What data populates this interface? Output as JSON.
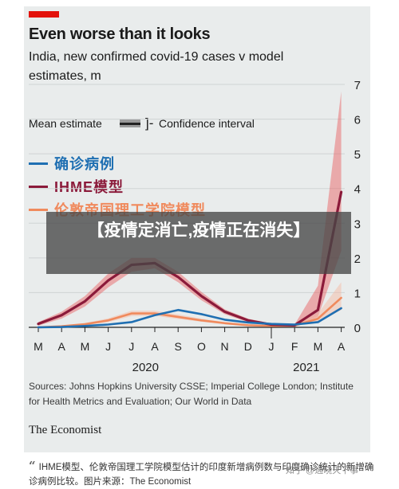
{
  "title": "Even worse than it looks",
  "subtitle": "India, new confirmed covid-19 cases v model estimates, m",
  "legend_keys": {
    "mean_estimate": "Mean estimate",
    "confidence_interval": "Confidence interval"
  },
  "banner": "【疫情定消亡,疫情正在消失】",
  "source": "Sources: Johns Hopkins University CSSE; Imperial College London; Institute for Health Metrics and Evaluation; Our World in Data",
  "brand": "The Economist",
  "caption": "IHME模型、伦敦帝国理工学院模型估计的印度新增病例数与印度确诊统计的新增确诊病例比较。图片来源：The Economist",
  "watermark": "知乎 @通晓天下事",
  "colors": {
    "confirmed": "#1f6fb2",
    "ihme": "#8b1a3a",
    "ihme_band": "#e8585a",
    "imperial": "#f08a5d",
    "imperial_band": "#f6b7a0",
    "accent": "#e3120b"
  },
  "chart_data": {
    "type": "line",
    "x": [
      "M",
      "A",
      "M",
      "J",
      "J",
      "A",
      "S",
      "O",
      "N",
      "D",
      "J",
      "F",
      "M",
      "A"
    ],
    "year_labels": [
      "2020",
      "2021"
    ],
    "ylim": [
      0,
      7
    ],
    "yticks": [
      0,
      1,
      2,
      3,
      4,
      5,
      6,
      7
    ],
    "series": [
      {
        "name": "确诊病例",
        "color": "#1f6fb2",
        "values": [
          0,
          0.01,
          0.04,
          0.08,
          0.15,
          0.35,
          0.5,
          0.38,
          0.22,
          0.14,
          0.1,
          0.08,
          0.15,
          0.55
        ]
      },
      {
        "name": "IHME模型",
        "color": "#8b1a3a",
        "values": [
          0.1,
          0.35,
          0.75,
          1.35,
          1.8,
          1.85,
          1.45,
          0.9,
          0.45,
          0.2,
          0.08,
          0.06,
          0.5,
          3.9
        ],
        "lower": [
          0.05,
          0.25,
          0.6,
          1.15,
          1.6,
          1.7,
          1.3,
          0.78,
          0.38,
          0.15,
          0.05,
          0.04,
          0.3,
          2.2
        ],
        "upper": [
          0.15,
          0.45,
          0.9,
          1.55,
          2.0,
          2.0,
          1.6,
          1.02,
          0.52,
          0.25,
          0.11,
          0.08,
          1.2,
          6.8
        ]
      },
      {
        "name": "伦敦帝国理工学院模型",
        "color": "#f08a5d",
        "values": [
          0,
          0.03,
          0.09,
          0.2,
          0.4,
          0.4,
          0.3,
          0.2,
          0.12,
          0.06,
          0.04,
          0.05,
          0.25,
          0.85
        ],
        "lower": [
          0,
          0.02,
          0.06,
          0.15,
          0.32,
          0.33,
          0.24,
          0.16,
          0.09,
          0.04,
          0.03,
          0.04,
          0.15,
          0.5
        ],
        "upper": [
          0,
          0.04,
          0.12,
          0.26,
          0.48,
          0.48,
          0.37,
          0.25,
          0.15,
          0.08,
          0.06,
          0.07,
          0.4,
          1.3
        ]
      }
    ]
  }
}
